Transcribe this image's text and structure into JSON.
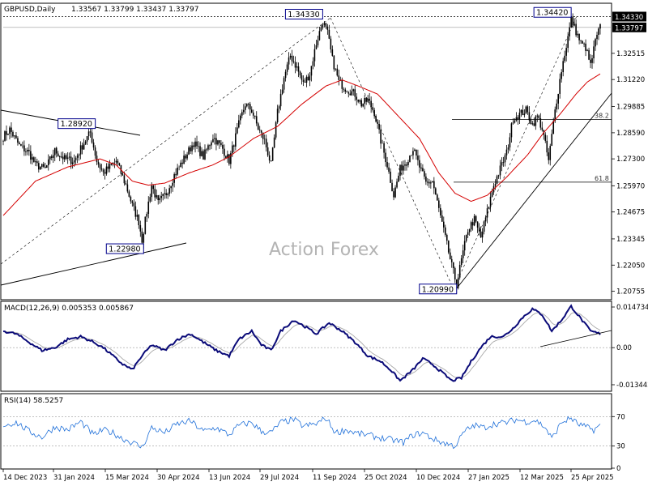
{
  "chart_data": {
    "type": "candlestick",
    "symbol_label": "GBPUSD,Daily",
    "ohlc_text": "1.33567 1.33799 1.33437 1.33797",
    "watermark": "Action Forex",
    "price_axis": {
      "ylim": [
        1.2038,
        1.3495
      ],
      "tick_labels": [
        "1.34330",
        "1.33797",
        "1.32515",
        "1.31220",
        "1.29885",
        "1.28590",
        "1.27300",
        "1.25970",
        "1.24675",
        "1.23345",
        "1.22050",
        "1.20755"
      ],
      "tick_values": [
        1.3433,
        1.33797,
        1.32515,
        1.3122,
        1.29885,
        1.2859,
        1.273,
        1.2597,
        1.24675,
        1.23345,
        1.2205,
        1.20755
      ],
      "highlighted": [
        "1.34330",
        "1.33797"
      ]
    },
    "x_axis": {
      "tick_labels": [
        "14 Dec 2023",
        "31 Jan 2024",
        "15 Mar 2024",
        "30 Apr 2024",
        "13 Jun 2024",
        "29 Jul 2024",
        "11 Sep 2024",
        "25 Oct 2024",
        "10 Dec 2024",
        "27 Jan 2025",
        "12 Mar 2025",
        "25 Apr 2025"
      ]
    },
    "price_anchors": [
      [
        0,
        1.284
      ],
      [
        4,
        1.2875
      ],
      [
        10,
        1.2795
      ],
      [
        16,
        1.276
      ],
      [
        20,
        1.27
      ],
      [
        26,
        1.268
      ],
      [
        32,
        1.277
      ],
      [
        38,
        1.273
      ],
      [
        44,
        1.272
      ],
      [
        50,
        1.281
      ],
      [
        54,
        1.286
      ],
      [
        58,
        1.272
      ],
      [
        62,
        1.266
      ],
      [
        66,
        1.269
      ],
      [
        70,
        1.272
      ],
      [
        76,
        1.26
      ],
      [
        80,
        1.25
      ],
      [
        84,
        1.242
      ],
      [
        86,
        1.233
      ],
      [
        89,
        1.247
      ],
      [
        92,
        1.26
      ],
      [
        96,
        1.251
      ],
      [
        101,
        1.256
      ],
      [
        106,
        1.265
      ],
      [
        112,
        1.273
      ],
      [
        118,
        1.281
      ],
      [
        124,
        1.274
      ],
      [
        130,
        1.284
      ],
      [
        136,
        1.278
      ],
      [
        140,
        1.272
      ],
      [
        146,
        1.29
      ],
      [
        150,
        1.3
      ],
      [
        154,
        1.297
      ],
      [
        158,
        1.288
      ],
      [
        162,
        1.282
      ],
      [
        166,
        1.27
      ],
      [
        170,
        1.296
      ],
      [
        174,
        1.313
      ],
      [
        178,
        1.324
      ],
      [
        182,
        1.318
      ],
      [
        186,
        1.31
      ],
      [
        190,
        1.315
      ],
      [
        194,
        1.33
      ],
      [
        198,
        1.341
      ],
      [
        201,
        1.335
      ],
      [
        204,
        1.322
      ],
      [
        208,
        1.311
      ],
      [
        212,
        1.308
      ],
      [
        218,
        1.305
      ],
      [
        222,
        1.3
      ],
      [
        226,
        1.302
      ],
      [
        230,
        1.296
      ],
      [
        234,
        1.282
      ],
      [
        238,
        1.27
      ],
      [
        242,
        1.255
      ],
      [
        246,
        1.268
      ],
      [
        250,
        1.272
      ],
      [
        254,
        1.278
      ],
      [
        258,
        1.269
      ],
      [
        262,
        1.261
      ],
      [
        266,
        1.262
      ],
      [
        270,
        1.248
      ],
      [
        274,
        1.234
      ],
      [
        278,
        1.22
      ],
      [
        281,
        1.211
      ],
      [
        284,
        1.223
      ],
      [
        288,
        1.238
      ],
      [
        292,
        1.243
      ],
      [
        296,
        1.234
      ],
      [
        300,
        1.247
      ],
      [
        304,
        1.26
      ],
      [
        308,
        1.268
      ],
      [
        312,
        1.276
      ],
      [
        316,
        1.293
      ],
      [
        320,
        1.295
      ],
      [
        324,
        1.297
      ],
      [
        328,
        1.29
      ],
      [
        331,
        1.294
      ],
      [
        334,
        1.288
      ],
      [
        338,
        1.272
      ],
      [
        342,
        1.297
      ],
      [
        346,
        1.317
      ],
      [
        350,
        1.333
      ],
      [
        352,
        1.342
      ],
      [
        355,
        1.336
      ],
      [
        358,
        1.33
      ],
      [
        361,
        1.328
      ],
      [
        364,
        1.319
      ],
      [
        367,
        1.331
      ],
      [
        370,
        1.338
      ]
    ],
    "moving_average_anchors": [
      [
        0,
        1.245
      ],
      [
        20,
        1.262
      ],
      [
        40,
        1.269
      ],
      [
        60,
        1.273
      ],
      [
        70,
        1.27
      ],
      [
        80,
        1.262
      ],
      [
        90,
        1.26
      ],
      [
        100,
        1.261
      ],
      [
        115,
        1.266
      ],
      [
        130,
        1.27
      ],
      [
        140,
        1.274
      ],
      [
        155,
        1.283
      ],
      [
        170,
        1.289
      ],
      [
        185,
        1.3
      ],
      [
        200,
        1.309
      ],
      [
        210,
        1.312
      ],
      [
        220,
        1.309
      ],
      [
        232,
        1.305
      ],
      [
        245,
        1.294
      ],
      [
        258,
        1.283
      ],
      [
        270,
        1.266
      ],
      [
        280,
        1.256
      ],
      [
        290,
        1.252
      ],
      [
        300,
        1.255
      ],
      [
        312,
        1.264
      ],
      [
        325,
        1.275
      ],
      [
        335,
        1.286
      ],
      [
        345,
        1.295
      ],
      [
        355,
        1.305
      ],
      [
        362,
        1.311
      ],
      [
        370,
        1.315
      ]
    ],
    "annotations": [
      {
        "label": "1.28920",
        "price": 1.2892,
        "bar": 44
      },
      {
        "label": "1.22980",
        "price": 1.2298,
        "bar": 88
      },
      {
        "label": "1.34330",
        "price": 1.3433,
        "bar": 198
      },
      {
        "label": "1.20990",
        "price": 1.2099,
        "bar": 281
      },
      {
        "label": "1.34420",
        "price": 1.3442,
        "bar": 352
      }
    ],
    "fibonacci": [
      {
        "label": "38.2",
        "price": 1.2925
      },
      {
        "label": "61.8",
        "price": 1.2615
      }
    ],
    "macd": {
      "title": "MACD(12,26,9) 0.005353 0.005867",
      "ylim": [
        -0.0155,
        0.0165
      ],
      "tick_labels": [
        "0.014734",
        "0.00",
        "-0.013442"
      ],
      "tick_values": [
        0.014734,
        0.0,
        -0.013442
      ],
      "anchors": [
        [
          0,
          0.006
        ],
        [
          8,
          0.005
        ],
        [
          16,
          0.002
        ],
        [
          24,
          -0.001
        ],
        [
          32,
          0.0
        ],
        [
          40,
          0.003
        ],
        [
          48,
          0.004
        ],
        [
          56,
          0.002
        ],
        [
          62,
          0.0
        ],
        [
          68,
          -0.003
        ],
        [
          74,
          -0.006
        ],
        [
          80,
          -0.008
        ],
        [
          86,
          -0.003
        ],
        [
          92,
          0.001
        ],
        [
          100,
          -0.001
        ],
        [
          108,
          0.003
        ],
        [
          116,
          0.005
        ],
        [
          124,
          0.002
        ],
        [
          132,
          -0.001
        ],
        [
          140,
          -0.003
        ],
        [
          146,
          0.003
        ],
        [
          154,
          0.006
        ],
        [
          160,
          0.001
        ],
        [
          166,
          -0.001
        ],
        [
          172,
          0.006
        ],
        [
          180,
          0.01
        ],
        [
          186,
          0.008
        ],
        [
          194,
          0.005
        ],
        [
          202,
          0.009
        ],
        [
          210,
          0.006
        ],
        [
          218,
          0.002
        ],
        [
          226,
          -0.003
        ],
        [
          234,
          -0.005
        ],
        [
          240,
          -0.008
        ],
        [
          246,
          -0.012
        ],
        [
          254,
          -0.008
        ],
        [
          260,
          -0.004
        ],
        [
          266,
          -0.006
        ],
        [
          272,
          -0.009
        ],
        [
          278,
          -0.012
        ],
        [
          284,
          -0.011
        ],
        [
          290,
          -0.005
        ],
        [
          296,
          0.0
        ],
        [
          302,
          0.004
        ],
        [
          310,
          0.004
        ],
        [
          316,
          0.007
        ],
        [
          322,
          0.011
        ],
        [
          328,
          0.014
        ],
        [
          334,
          0.012
        ],
        [
          340,
          0.006
        ],
        [
          346,
          0.01
        ],
        [
          352,
          0.015
        ],
        [
          356,
          0.012
        ],
        [
          360,
          0.009
        ],
        [
          364,
          0.006
        ],
        [
          370,
          0.005
        ]
      ]
    },
    "rsi": {
      "title": "RSI(14) 58.5257",
      "ylim": [
        0,
        100
      ],
      "tick_labels": [
        "70",
        "30",
        "0"
      ],
      "tick_values": [
        70,
        30,
        0
      ],
      "anchors": [
        [
          0,
          58
        ],
        [
          8,
          62
        ],
        [
          16,
          50
        ],
        [
          24,
          42
        ],
        [
          32,
          56
        ],
        [
          40,
          52
        ],
        [
          48,
          63
        ],
        [
          56,
          45
        ],
        [
          62,
          52
        ],
        [
          68,
          48
        ],
        [
          74,
          40
        ],
        [
          80,
          35
        ],
        [
          86,
          28
        ],
        [
          92,
          55
        ],
        [
          100,
          48
        ],
        [
          108,
          60
        ],
        [
          116,
          64
        ],
        [
          124,
          50
        ],
        [
          132,
          55
        ],
        [
          140,
          45
        ],
        [
          146,
          58
        ],
        [
          154,
          62
        ],
        [
          160,
          50
        ],
        [
          166,
          48
        ],
        [
          172,
          62
        ],
        [
          180,
          66
        ],
        [
          186,
          57
        ],
        [
          194,
          60
        ],
        [
          200,
          68
        ],
        [
          206,
          48
        ],
        [
          212,
          52
        ],
        [
          220,
          47
        ],
        [
          228,
          44
        ],
        [
          236,
          40
        ],
        [
          242,
          38
        ],
        [
          248,
          35
        ],
        [
          254,
          45
        ],
        [
          260,
          48
        ],
        [
          266,
          40
        ],
        [
          272,
          35
        ],
        [
          280,
          30
        ],
        [
          286,
          50
        ],
        [
          292,
          58
        ],
        [
          298,
          55
        ],
        [
          304,
          60
        ],
        [
          312,
          62
        ],
        [
          318,
          66
        ],
        [
          324,
          63
        ],
        [
          330,
          65
        ],
        [
          336,
          55
        ],
        [
          340,
          40
        ],
        [
          346,
          62
        ],
        [
          352,
          68
        ],
        [
          356,
          60
        ],
        [
          362,
          55
        ],
        [
          366,
          52
        ],
        [
          370,
          58
        ]
      ]
    }
  }
}
